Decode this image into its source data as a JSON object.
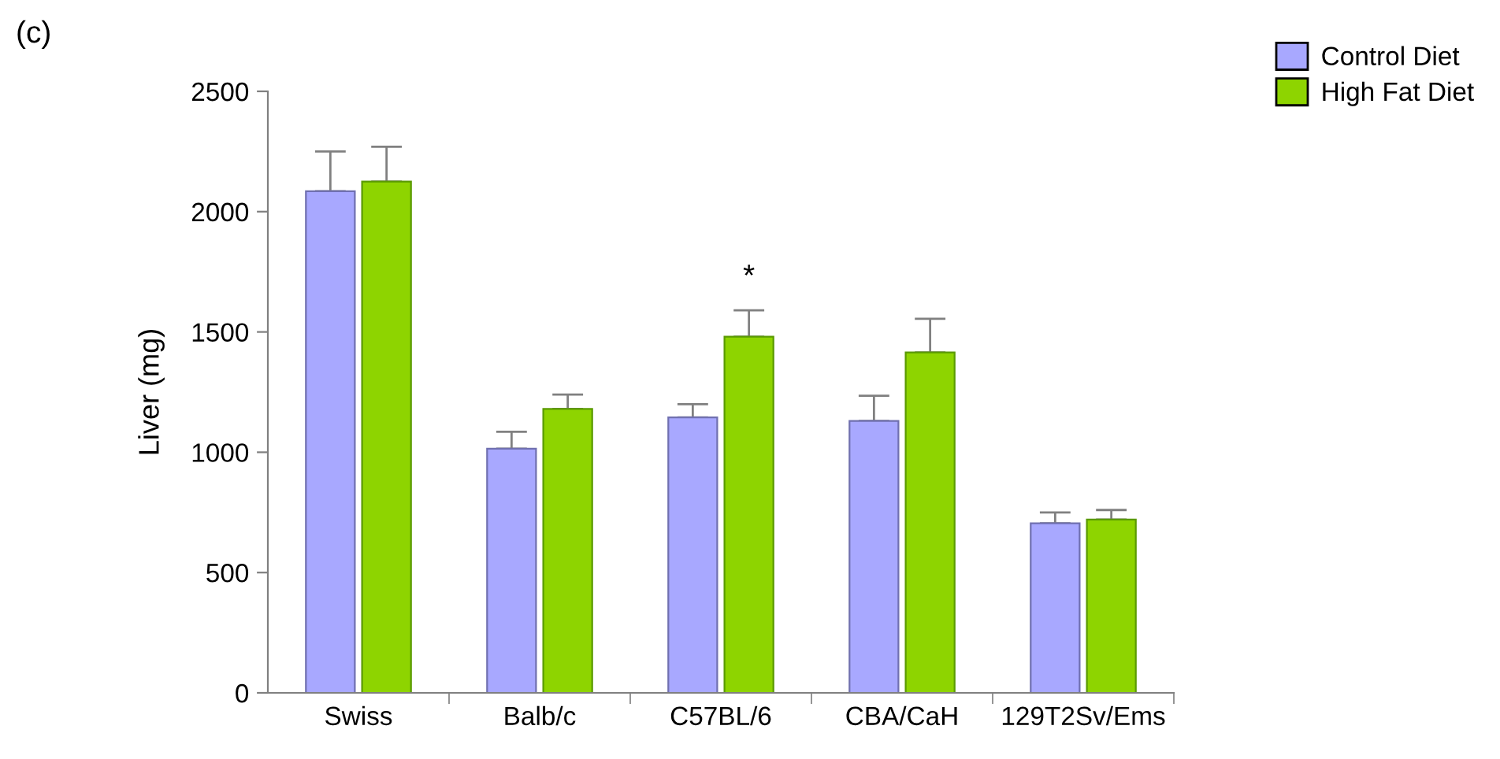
{
  "chart_data": {
    "type": "bar",
    "ylabel": "Liver (mg)",
    "categories": [
      "Swiss",
      "Balb/c",
      "C57BL/6",
      "CBA/CaH",
      "129T2Sv/Ems"
    ],
    "series": [
      {
        "name": "Control Diet",
        "color": "#a8a8ff",
        "values": [
          2085,
          1015,
          1145,
          1130,
          705
        ],
        "errors": [
          [
            2085,
            2250
          ],
          [
            1015,
            1085
          ],
          [
            1145,
            1200
          ],
          [
            1130,
            1235
          ],
          [
            705,
            750
          ]
        ]
      },
      {
        "name": "High Fat Diet",
        "color": "#8ed400",
        "values": [
          2125,
          1180,
          1480,
          1415,
          720
        ],
        "errors": [
          [
            2125,
            2270
          ],
          [
            1180,
            1240
          ],
          [
            1480,
            1590
          ],
          [
            1415,
            1555
          ],
          [
            720,
            760
          ]
        ]
      }
    ],
    "ylim": [
      0,
      2500
    ],
    "yticks": [
      0,
      500,
      1000,
      1500,
      2000,
      2500
    ],
    "grid": false,
    "legend": "top right",
    "annotations": [
      "(c)",
      "*"
    ]
  }
}
